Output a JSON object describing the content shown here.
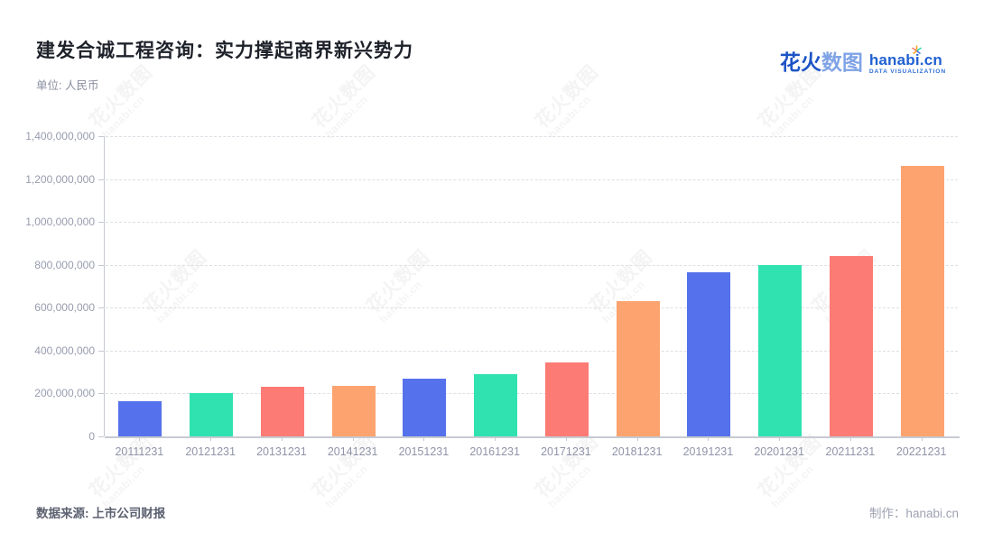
{
  "header": {
    "title": "建发合诚工程咨询：实力撑起商界新兴势力",
    "unit_label": "单位: 人民币"
  },
  "logo": {
    "brand_cn_part1": "花火",
    "brand_cn_part2": "数图",
    "domain": "hanabi.cn",
    "tagline": "DATA VISUALIZATION",
    "brand_color": "#2161d1"
  },
  "watermark": {
    "text_cn": "花火数图",
    "text_en": "hanabi.cn"
  },
  "footer": {
    "source_label": "数据来源: 上市公司财报",
    "credit_label": "制作：hanabi.cn"
  },
  "chart_data": {
    "type": "bar",
    "title": "建发合诚工程咨询：实力撑起商界新兴势力",
    "unit": "人民币",
    "categories": [
      "20111231",
      "20121231",
      "20131231",
      "20141231",
      "20151231",
      "20161231",
      "20171231",
      "20181231",
      "20191231",
      "20201231",
      "20211231",
      "20221231"
    ],
    "values": [
      165000000,
      203000000,
      230000000,
      234000000,
      268000000,
      289000000,
      343000000,
      630000000,
      764000000,
      798000000,
      843000000,
      1262000000
    ],
    "ylim": [
      0,
      1400000000
    ],
    "ytick_interval": 200000000,
    "grid": "dashed-horizontal",
    "legend": "none",
    "bar_palette": [
      "#5571eb",
      "#30e2b0",
      "#fc7b75",
      "#fda36f"
    ],
    "axis_color": "#c6cad1",
    "tick_label_color": "#8f94a8"
  }
}
